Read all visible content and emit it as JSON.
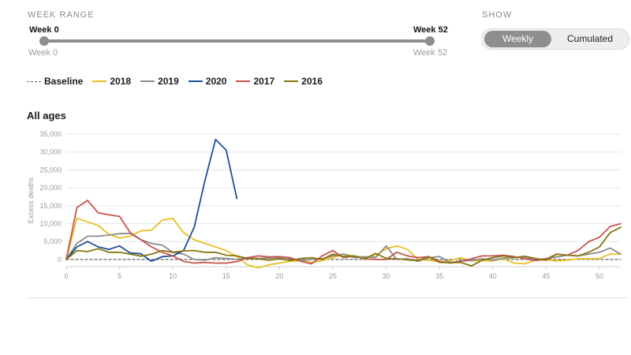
{
  "controls": {
    "week_range_label": "WEEK RANGE",
    "show_label": "SHOW",
    "slider": {
      "start_label": "Week 0",
      "end_label": "Week 52",
      "start_sub": "Week 0",
      "end_sub": "Week 52",
      "start_value": 0,
      "end_value": 52
    },
    "toggle": {
      "weekly": "Weekly",
      "cumulated": "Cumulated",
      "selected": "Weekly"
    }
  },
  "legend": [
    {
      "label": "Baseline",
      "color": "#666666",
      "dashed": true
    },
    {
      "label": "2018",
      "color": "#e8c023"
    },
    {
      "label": "2019",
      "color": "#8c8c8c"
    },
    {
      "label": "2020",
      "color": "#1f4e96"
    },
    {
      "label": "2017",
      "color": "#c9534d"
    },
    {
      "label": "2016",
      "color": "#8a7410"
    }
  ],
  "chart_data": {
    "type": "line",
    "title": "All ages",
    "xlabel": "",
    "ylabel": "Excess deaths",
    "xlim": [
      0,
      52
    ],
    "ylim": [
      -2000,
      35000
    ],
    "xticks": [
      0,
      5,
      10,
      15,
      20,
      25,
      30,
      35,
      40,
      45,
      50
    ],
    "yticks": [
      0,
      5000,
      10000,
      15000,
      20000,
      25000,
      30000,
      35000
    ],
    "ytick_labels": [
      "0",
      "5,000",
      "10,000",
      "15,000",
      "20,000",
      "25,000",
      "30,000",
      "35,000"
    ],
    "grid": true,
    "series": [
      {
        "name": "Baseline",
        "color": "#666666",
        "dashed": true,
        "x": [
          0,
          52
        ],
        "values": [
          0,
          0
        ]
      },
      {
        "name": "2018",
        "color": "#e8c023",
        "x": [
          0,
          1,
          2,
          3,
          4,
          5,
          6,
          7,
          8,
          9,
          10,
          11,
          12,
          13,
          14,
          15,
          16,
          17,
          18,
          19,
          20,
          21,
          22,
          23,
          24,
          25,
          26,
          27,
          28,
          29,
          30,
          31,
          32,
          33,
          34,
          35,
          36,
          37,
          38,
          39,
          40,
          41,
          42,
          43,
          44,
          45,
          46,
          47,
          48,
          49,
          50,
          51,
          52
        ],
        "values": [
          0,
          11500,
          10500,
          9500,
          7000,
          6000,
          6500,
          8000,
          8200,
          11000,
          11500,
          7500,
          5500,
          4500,
          3500,
          2500,
          800,
          -1500,
          -2300,
          -1500,
          -1000,
          -500,
          -300,
          -800,
          -300,
          500,
          1500,
          1000,
          500,
          1000,
          3000,
          3800,
          2800,
          0,
          -200,
          -600,
          -300,
          500,
          -400,
          -300,
          -400,
          200,
          -1000,
          -1200,
          -200,
          -100,
          -400,
          -200,
          200,
          200,
          300,
          1500,
          1500
        ]
      },
      {
        "name": "2019",
        "color": "#8c8c8c",
        "x": [
          0,
          1,
          2,
          3,
          4,
          5,
          6,
          7,
          8,
          9,
          10,
          11,
          12,
          13,
          14,
          15,
          16,
          17,
          18,
          19,
          20,
          21,
          22,
          23,
          24,
          25,
          26,
          27,
          28,
          29,
          30,
          31,
          32,
          33,
          34,
          35,
          36,
          37,
          38,
          39,
          40,
          41,
          42,
          43,
          44,
          45,
          46,
          47,
          48,
          49,
          50,
          51,
          52
        ],
        "values": [
          0,
          4500,
          6500,
          6500,
          6800,
          7200,
          7300,
          5500,
          4500,
          4000,
          2000,
          1500,
          0,
          -200,
          500,
          300,
          0,
          500,
          300,
          400,
          500,
          300,
          -300,
          0,
          200,
          1000,
          1500,
          500,
          800,
          500,
          3800,
          0,
          200,
          -500,
          500,
          800,
          -800,
          -400,
          -300,
          200,
          -200,
          400,
          500,
          700,
          -200,
          300,
          700,
          1200,
          1000,
          1500,
          2000,
          3200,
          1500
        ]
      },
      {
        "name": "2020",
        "color": "#1f4e96",
        "x": [
          0,
          1,
          2,
          3,
          4,
          5,
          6,
          7,
          8,
          9,
          10,
          11,
          12,
          13,
          14,
          15,
          16
        ],
        "values": [
          0,
          3500,
          5000,
          3500,
          2800,
          3800,
          1800,
          1600,
          -500,
          800,
          1000,
          2500,
          9000,
          22000,
          33500,
          30500,
          17000
        ]
      },
      {
        "name": "2017",
        "color": "#c9534d",
        "x": [
          0,
          1,
          2,
          3,
          4,
          5,
          6,
          7,
          8,
          9,
          10,
          11,
          12,
          13,
          14,
          15,
          16,
          17,
          18,
          19,
          20,
          21,
          22,
          23,
          24,
          25,
          26,
          27,
          28,
          29,
          30,
          31,
          32,
          33,
          34,
          35,
          36,
          37,
          38,
          39,
          40,
          41,
          42,
          43,
          44,
          45,
          46,
          47,
          48,
          49,
          50,
          51,
          52
        ],
        "values": [
          0,
          14500,
          16500,
          13000,
          12500,
          12000,
          7500,
          5500,
          3500,
          2000,
          1000,
          -500,
          -1000,
          -800,
          -1000,
          -1000,
          -600,
          500,
          1000,
          700,
          800,
          500,
          -500,
          -1200,
          1000,
          2500,
          500,
          1000,
          200,
          0,
          0,
          2000,
          1000,
          500,
          800,
          -500,
          -1000,
          -500,
          200,
          1000,
          1000,
          1200,
          800,
          200,
          -300,
          100,
          1500,
          1200,
          2500,
          5000,
          6200,
          9200,
          10000
        ]
      },
      {
        "name": "2016",
        "color": "#8a7410",
        "x": [
          0,
          1,
          2,
          3,
          4,
          5,
          6,
          7,
          8,
          9,
          10,
          11,
          12,
          13,
          14,
          15,
          16,
          17,
          18,
          19,
          20,
          21,
          22,
          23,
          24,
          25,
          26,
          27,
          28,
          29,
          30,
          31,
          32,
          33,
          34,
          35,
          36,
          37,
          38,
          39,
          40,
          41,
          42,
          43,
          44,
          45,
          46,
          47,
          48,
          49,
          50,
          51,
          52
        ],
        "values": [
          0,
          2500,
          2200,
          3000,
          2000,
          2000,
          1500,
          900,
          1500,
          2500,
          2000,
          2400,
          2500,
          2000,
          2000,
          1200,
          1000,
          300,
          200,
          -200,
          200,
          -300,
          300,
          500,
          0,
          1500,
          800,
          1000,
          200,
          1700,
          300,
          200,
          -100,
          -300,
          800,
          -800,
          -900,
          -800,
          -1800,
          -200,
          500,
          1000,
          500,
          900,
          300,
          -200,
          1500,
          1200,
          1000,
          2000,
          3500,
          7500,
          9000
        ]
      }
    ]
  }
}
